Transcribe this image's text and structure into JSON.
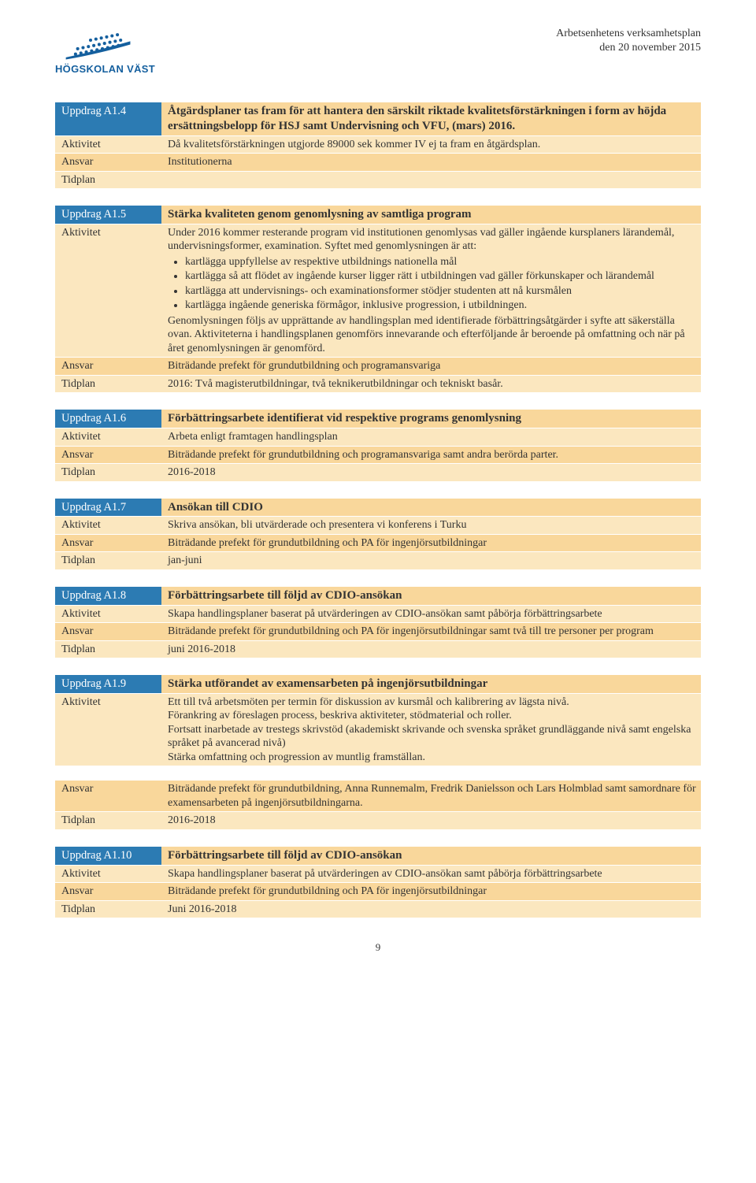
{
  "colors": {
    "blue_header": "#2c7bb3",
    "row_odd": "#f9d79b",
    "row_even": "#fbe7bf",
    "table_border": "#d9b862",
    "text": "#333333",
    "background": "#ffffff",
    "logo_blue": "#145f9e"
  },
  "header": {
    "org_line1": "Arbetsenhetens verksamhetsplan",
    "org_line2": "den 20 november 2015",
    "logo_text": "HÖGSKOLAN VÄST"
  },
  "labels": {
    "aktivitet": "Aktivitet",
    "ansvar": "Ansvar",
    "tidplan": "Tidplan"
  },
  "sections": [
    {
      "id": "Uppdrag A1.4",
      "title": "Åtgärdsplaner tas fram för att hantera den särskilt riktade kvalitetsförstärkningen i form av höjda ersättningsbelopp för HSJ samt Undervisning och VFU, (mars) 2016.",
      "title_bold": false,
      "aktivitet": "Då kvalitetsförstärkningen utgjorde 89000 sek kommer IV ej ta fram en åtgärdsplan.",
      "ansvar": "Institutionerna",
      "tidplan": ""
    },
    {
      "id": "Uppdrag A1.5",
      "title": "Stärka kvaliteten genom genomlysning av samtliga program",
      "title_bold": true,
      "aktivitet_intro": "Under 2016 kommer resterande program vid institutionen genomlysas vad gäller ingående kursplaners lärandemål, undervisningsformer, examination. Syftet med genomlysningen är att:",
      "bullets": [
        "kartlägga uppfyllelse av respektive utbildnings nationella mål",
        "kartlägga så att flödet av ingående kurser ligger rätt i utbildningen vad gäller förkunskaper och lärandemål",
        "kartlägga att undervisnings- och examinationsformer stödjer studenten att nå kursmålen",
        "kartlägga ingående generiska förmågor, inklusive progression, i utbildningen."
      ],
      "aktivitet_outro": "Genomlysningen följs av upprättande av handlingsplan med identifierade förbättringsåtgärder i syfte att säkerställa ovan. Aktiviteterna i handlingsplanen genomförs innevarande och efterföljande år beroende på omfattning och när på året genomlysningen är genomförd.",
      "ansvar": "Biträdande prefekt för grundutbildning och programansvariga",
      "tidplan": "2016: Två magisterutbildningar, två teknikerutbildningar och tekniskt basår."
    },
    {
      "id": "Uppdrag A1.6",
      "title": "Förbättringsarbete identifierat vid respektive programs genomlysning",
      "title_bold": true,
      "aktivitet": "Arbeta enligt framtagen handlingsplan",
      "ansvar": "Biträdande prefekt för grundutbildning och programansvariga samt andra berörda parter.",
      "tidplan": "2016-2018"
    },
    {
      "id": "Uppdrag A1.7",
      "title": "Ansökan till CDIO",
      "title_bold": true,
      "aktivitet": "Skriva ansökan, bli utvärderade och presentera vi konferens i Turku",
      "ansvar": "Biträdande prefekt för grundutbildning och PA för ingenjörsutbildningar",
      "tidplan": "jan-juni"
    },
    {
      "id": "Uppdrag A1.8",
      "title": "Förbättringsarbete till följd av CDIO-ansökan",
      "title_bold": true,
      "aktivitet": "Skapa handlingsplaner baserat på utvärderingen av CDIO-ansökan samt påbörja förbättringsarbete",
      "ansvar": "Biträdande prefekt för grundutbildning och PA för ingenjörsutbildningar samt två till tre personer per program",
      "tidplan": "juni 2016-2018"
    },
    {
      "id": "Uppdrag A1.9",
      "title": "Stärka utförandet av examensarbeten på ingenjörsutbildningar",
      "title_bold": true,
      "aktivitet": "Ett till två arbetsmöten per termin för diskussion av kursmål och kalibrering av lägsta nivå.\nFörankring av föreslagen process, beskriva aktiviteter, stödmaterial och roller.\nFortsatt inarbetade av trestegs skrivstöd (akademiskt skrivande och svenska språket grundläggande nivå samt engelska språket på avancerad nivå)\nStärka omfattning och progression av muntlig framställan.",
      "ansvar": "Biträdande prefekt för grundutbildning, Anna Runnemalm, Fredrik Danielsson och Lars Holmblad samt samordnare för examensarbeten på ingenjörsutbildningarna.",
      "tidplan": "2016-2018",
      "gap_before_ansvar": true
    },
    {
      "id": "Uppdrag A1.10",
      "title": "Förbättringsarbete till följd av CDIO-ansökan",
      "title_bold": true,
      "aktivitet": "Skapa handlingsplaner baserat på utvärderingen av CDIO-ansökan samt påbörja förbättringsarbete",
      "ansvar": "Biträdande prefekt för grundutbildning och PA för ingenjörsutbildningar",
      "tidplan": "Juni 2016-2018"
    }
  ],
  "page_number": "9"
}
